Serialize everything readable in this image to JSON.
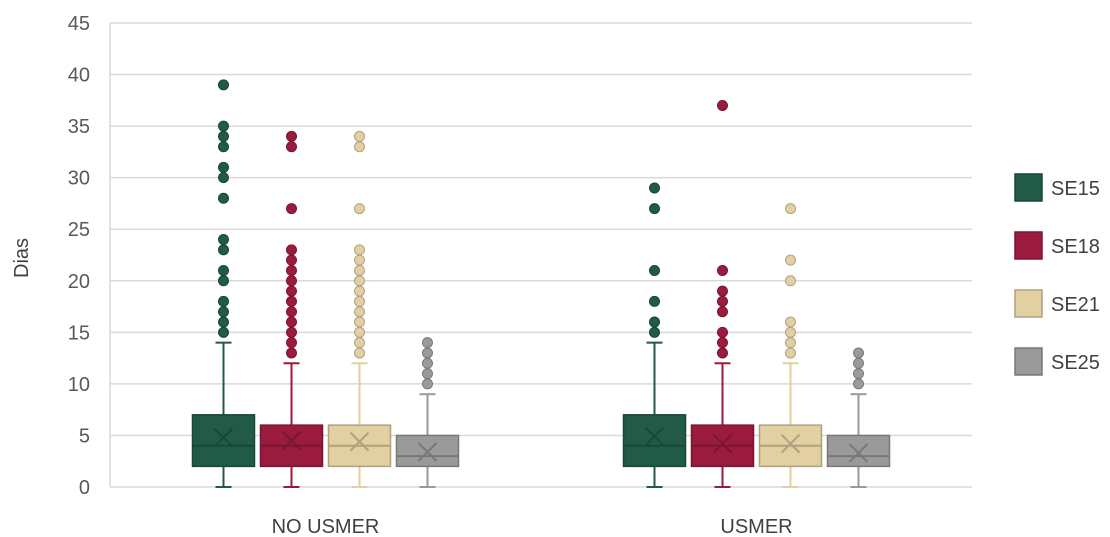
{
  "chart_data": {
    "type": "box",
    "ylabel": "Dias",
    "ylim": [
      0,
      45
    ],
    "yticks": [
      "0",
      "5",
      "10",
      "15",
      "20",
      "25",
      "30",
      "35",
      "40",
      "45"
    ],
    "categories": [
      "NO USMER",
      "USMER"
    ],
    "grid": true,
    "legend_position": "right",
    "series": [
      {
        "name": "SE15",
        "color": "#215A47",
        "boxes": [
          {
            "min": 0,
            "q1": 2,
            "median": 4,
            "q3": 7,
            "max": 14,
            "mean": 4.8,
            "outliers": [
              15,
              16,
              17,
              18,
              20,
              21,
              23,
              24,
              28,
              30,
              31,
              33,
              34,
              35,
              39
            ]
          },
          {
            "min": 0,
            "q1": 2,
            "median": 4,
            "q3": 7,
            "max": 14,
            "mean": 4.9,
            "outliers": [
              15,
              16,
              18,
              21,
              27,
              29
            ]
          }
        ]
      },
      {
        "name": "SE18",
        "color": "#9B1B3F",
        "boxes": [
          {
            "min": 0,
            "q1": 2,
            "median": 4,
            "q3": 6,
            "max": 12,
            "mean": 4.5,
            "outliers": [
              13,
              14,
              15,
              16,
              17,
              18,
              19,
              20,
              21,
              22,
              23,
              27,
              33,
              34
            ]
          },
          {
            "min": 0,
            "q1": 2,
            "median": 4,
            "q3": 6,
            "max": 12,
            "mean": 4.2,
            "outliers": [
              13,
              14,
              15,
              17,
              18,
              19,
              21,
              37
            ]
          }
        ]
      },
      {
        "name": "SE21",
        "color": "#E2CFA2",
        "boxes": [
          {
            "min": 0,
            "q1": 2,
            "median": 4,
            "q3": 6,
            "max": 12,
            "mean": 4.4,
            "outliers": [
              13,
              14,
              15,
              16,
              17,
              18,
              19,
              20,
              21,
              22,
              23,
              27,
              33,
              34
            ]
          },
          {
            "min": 0,
            "q1": 2,
            "median": 4,
            "q3": 6,
            "max": 12,
            "mean": 4.2,
            "outliers": [
              13,
              14,
              15,
              16,
              20,
              22,
              27
            ]
          }
        ]
      },
      {
        "name": "SE25",
        "color": "#9A9A9A",
        "boxes": [
          {
            "min": 0,
            "q1": 2,
            "median": 3,
            "q3": 5,
            "max": 9,
            "mean": 3.4,
            "outliers": [
              10,
              11,
              12,
              13,
              14
            ]
          },
          {
            "min": 0,
            "q1": 2,
            "median": 3,
            "q3": 5,
            "max": 9,
            "mean": 3.3,
            "outliers": [
              10,
              11,
              12,
              13
            ]
          }
        ]
      }
    ]
  }
}
